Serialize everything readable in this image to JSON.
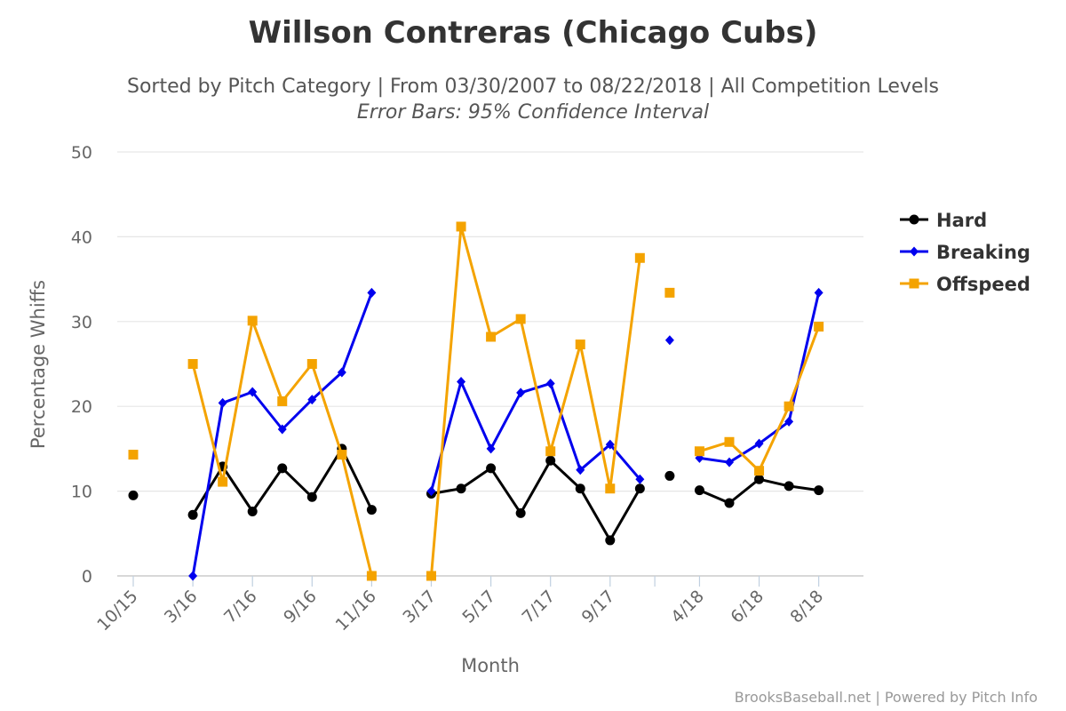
{
  "chart_data": {
    "type": "line",
    "title": "Willson Contreras (Chicago Cubs)",
    "subtitle": "Sorted by Pitch Category | From 03/30/2007 to 08/22/2018 | All Competition Levels",
    "subtitle2": "Error Bars: 95% Confidence Interval",
    "xlabel": "Month",
    "ylabel": "Percentage Whiffs",
    "ylim": [
      0,
      50
    ],
    "yticks": [
      0,
      10,
      20,
      30,
      40,
      50
    ],
    "grid": true,
    "legend_position": "right",
    "categories": [
      "10/15",
      "",
      "3/16",
      "",
      "7/16",
      "",
      "9/16",
      "",
      "11/16",
      "",
      "3/17",
      "",
      "5/17",
      "",
      "7/17",
      "",
      "9/17",
      "",
      "",
      "4/18",
      "",
      "6/18",
      "",
      "8/18"
    ],
    "xtick_labels": [
      {
        "index": 0,
        "label": "10/15"
      },
      {
        "index": 2,
        "label": "3/16"
      },
      {
        "index": 4,
        "label": "7/16"
      },
      {
        "index": 6,
        "label": "9/16"
      },
      {
        "index": 8,
        "label": "11/16"
      },
      {
        "index": 10,
        "label": "3/17"
      },
      {
        "index": 12,
        "label": "5/17"
      },
      {
        "index": 14,
        "label": "7/17"
      },
      {
        "index": 16,
        "label": "9/17"
      },
      {
        "index": 19,
        "label": "4/18"
      },
      {
        "index": 21,
        "label": "6/18"
      },
      {
        "index": 23,
        "label": "8/18"
      }
    ],
    "series": [
      {
        "name": "Hard",
        "color": "#000000",
        "marker": "circle",
        "values": [
          9.5,
          null,
          7.2,
          12.9,
          7.6,
          12.7,
          9.3,
          15.0,
          7.8,
          null,
          9.7,
          10.3,
          12.7,
          7.4,
          13.6,
          10.3,
          4.2,
          10.3,
          11.8,
          10.1,
          8.6,
          11.4,
          10.6,
          10.1
        ]
      },
      {
        "name": "Breaking",
        "color": "#0000ee",
        "marker": "diamond",
        "values": [
          null,
          null,
          0.0,
          20.4,
          21.7,
          17.3,
          20.8,
          24.0,
          33.4,
          null,
          10.0,
          22.9,
          15.0,
          21.6,
          22.7,
          12.5,
          15.5,
          11.4,
          27.8,
          13.9,
          13.4,
          15.6,
          18.2,
          33.4
        ]
      },
      {
        "name": "Offspeed",
        "color": "#f4a300",
        "marker": "square",
        "values": [
          14.3,
          null,
          25.0,
          11.1,
          30.1,
          20.6,
          25.0,
          14.3,
          0.0,
          null,
          0.0,
          41.2,
          28.2,
          30.3,
          14.7,
          27.3,
          10.3,
          37.5,
          33.4,
          14.7,
          15.8,
          12.4,
          20.0,
          29.4
        ]
      }
    ],
    "segment_breaks": [
      1,
      9,
      18
    ]
  },
  "credit": "BrooksBaseball.net | Powered by Pitch Info"
}
